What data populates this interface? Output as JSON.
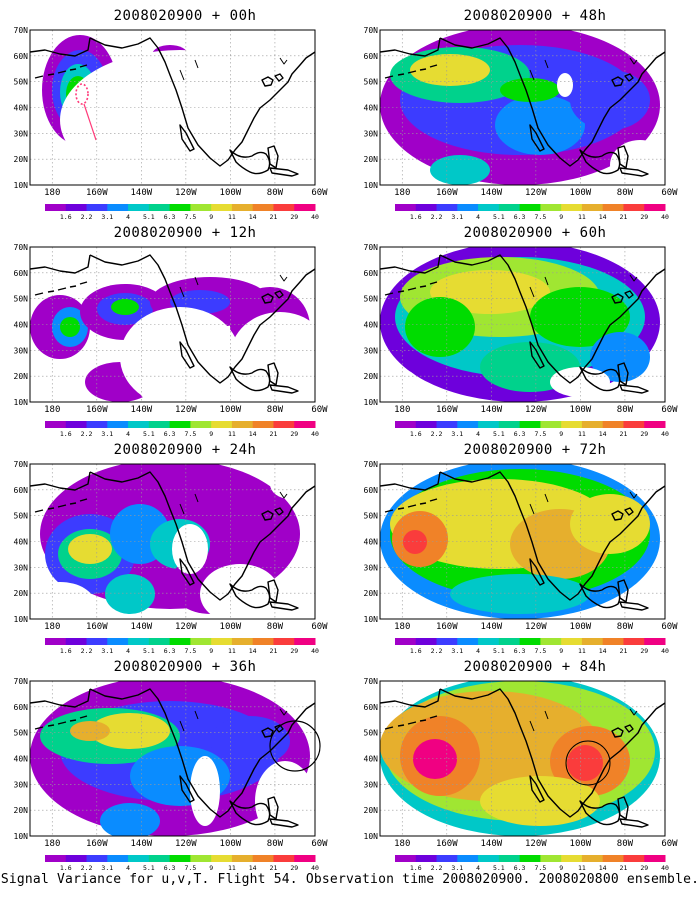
{
  "caption": "Signal Variance for u,v,T. Flight 54. Observation time 2008020900. 2008020800 ensemble.",
  "latitude_ticks": [
    "70N",
    "60N",
    "50N",
    "40N",
    "30N",
    "20N",
    "10N"
  ],
  "longitude_ticks": [
    "180",
    "160W",
    "140W",
    "120W",
    "100W",
    "80W",
    "60W"
  ],
  "colorbar": {
    "labels": [
      "1.6",
      "2.2",
      "3.1",
      "4",
      "5.1",
      "6.3",
      "7.5",
      "9",
      "11",
      "14",
      "21",
      "29",
      "40"
    ],
    "colors": [
      "#a000c8",
      "#6e00dc",
      "#3c3cff",
      "#0a8cff",
      "#00c8c8",
      "#00d28c",
      "#00dc00",
      "#a0e632",
      "#e6dc32",
      "#e6af2d",
      "#f08228",
      "#fa3c3c",
      "#f00082"
    ]
  },
  "panels": [
    {
      "title": "2008020900 + 00h"
    },
    {
      "title": "2008020900 + 12h"
    },
    {
      "title": "2008020900 + 24h"
    },
    {
      "title": "2008020900 + 36h"
    },
    {
      "title": "2008020900 + 48h"
    },
    {
      "title": "2008020900 + 60h"
    },
    {
      "title": "2008020900 + 72h"
    },
    {
      "title": "2008020900 + 84h"
    }
  ]
}
